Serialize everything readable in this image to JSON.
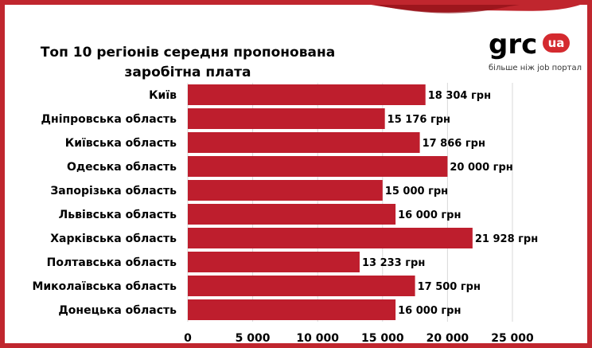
{
  "chart_data": {
    "type": "bar",
    "orientation": "horizontal",
    "title": "Топ 10 регіонів середня пропонована заробітна плата",
    "categories": [
      "Київ",
      "Дніпровська область",
      "Київська область",
      "Одеська область",
      "Запорізька область",
      "Львівська область",
      "Харківська область",
      "Полтавська область",
      "Миколаївська область",
      "Донецька область"
    ],
    "values": [
      18304,
      15176,
      17866,
      20000,
      15000,
      16000,
      21928,
      13233,
      17500,
      16000
    ],
    "value_labels": [
      "18 304 грн",
      "15 176 грн",
      "17 866 грн",
      "20 000 грн",
      "15 000 грн",
      "16 000 грн",
      "21 928 грн",
      "13 233 грн",
      "17 500 грн",
      "16 000 грн"
    ],
    "xlim": [
      0,
      25000
    ],
    "x_ticks": [
      "0",
      "5 000",
      "10 000",
      "15 000",
      "20 000",
      "25 000"
    ],
    "xlabel": "",
    "ylabel": "",
    "grid": "vertical",
    "legend": "none",
    "bar_color": "#be1e2d",
    "grid_color": "#d9d9d9"
  },
  "logo": {
    "name": "grc",
    "badge": "ua",
    "tagline": "більше ніж job портал",
    "brand_color": "#d42a2f"
  },
  "theme": {
    "frame_color": "#c0262e",
    "band_color": "#c0262e"
  }
}
